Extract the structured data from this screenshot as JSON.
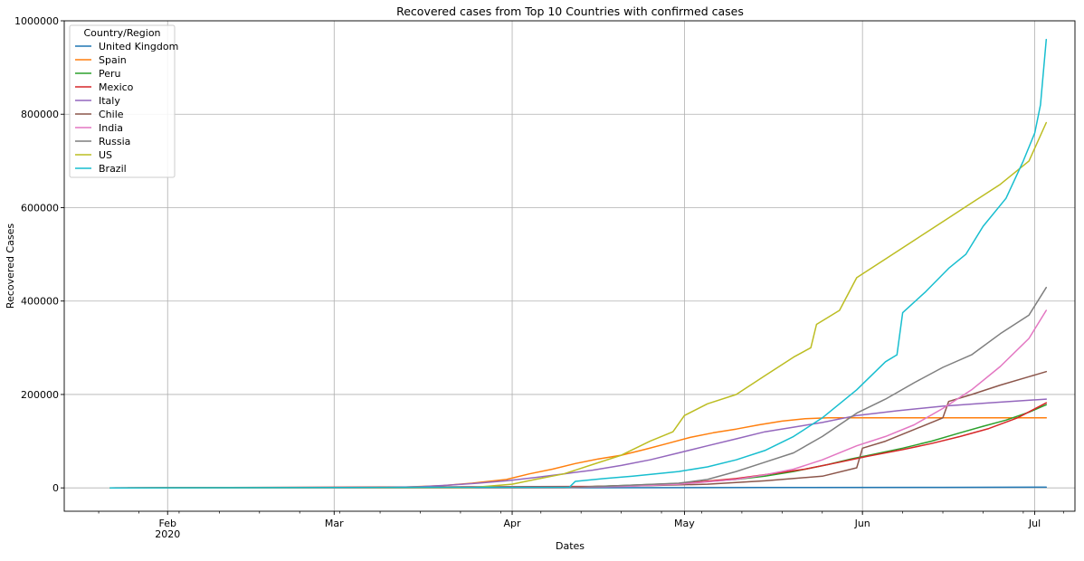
{
  "chart_data": {
    "type": "line",
    "title": "Recovered cases from Top 10 Countries with confirmed cases",
    "xlabel": "Dates",
    "ylabel": "Recovered Cases",
    "legend_title": "Country/Region",
    "legend_position": "top-left",
    "grid": true,
    "xlim": [
      "2020-01-14",
      "2020-07-08"
    ],
    "ylim": [
      -50000,
      1000000
    ],
    "y_ticks": [
      0,
      200000,
      400000,
      600000,
      800000,
      1000000
    ],
    "y_tick_labels": [
      "0",
      "200000",
      "400000",
      "600000",
      "800000",
      "1000000"
    ],
    "x_ticks": [
      {
        "date": "2020-02-01",
        "label": "Feb",
        "sublabel": "2020"
      },
      {
        "date": "2020-03-01",
        "label": "Mar",
        "sublabel": ""
      },
      {
        "date": "2020-04-01",
        "label": "Apr",
        "sublabel": ""
      },
      {
        "date": "2020-05-01",
        "label": "May",
        "sublabel": ""
      },
      {
        "date": "2020-06-01",
        "label": "Jun",
        "sublabel": ""
      },
      {
        "date": "2020-07-01",
        "label": "Jul",
        "sublabel": ""
      }
    ],
    "series": [
      {
        "name": "United Kingdom",
        "color": "#1f77b4",
        "points": [
          [
            "2020-01-22",
            0
          ],
          [
            "2020-04-15",
            300
          ],
          [
            "2020-05-15",
            800
          ],
          [
            "2020-06-15",
            1200
          ],
          [
            "2020-07-03",
            1500
          ]
        ]
      },
      {
        "name": "Spain",
        "color": "#ff7f0e",
        "points": [
          [
            "2020-01-22",
            0
          ],
          [
            "2020-03-10",
            200
          ],
          [
            "2020-03-20",
            5000
          ],
          [
            "2020-03-25",
            10000
          ],
          [
            "2020-03-31",
            18000
          ],
          [
            "2020-04-04",
            30000
          ],
          [
            "2020-04-08",
            40000
          ],
          [
            "2020-04-12",
            52000
          ],
          [
            "2020-04-16",
            62000
          ],
          [
            "2020-04-20",
            70000
          ],
          [
            "2020-04-24",
            82000
          ],
          [
            "2020-04-28",
            95000
          ],
          [
            "2020-05-02",
            108000
          ],
          [
            "2020-05-06",
            118000
          ],
          [
            "2020-05-10",
            126000
          ],
          [
            "2020-05-14",
            135000
          ],
          [
            "2020-05-18",
            143000
          ],
          [
            "2020-05-22",
            148000
          ],
          [
            "2020-05-26",
            150000
          ],
          [
            "2020-07-03",
            150000
          ]
        ]
      },
      {
        "name": "Peru",
        "color": "#2ca02c",
        "points": [
          [
            "2020-01-22",
            0
          ],
          [
            "2020-04-10",
            1000
          ],
          [
            "2020-04-20",
            5000
          ],
          [
            "2020-05-01",
            10000
          ],
          [
            "2020-05-10",
            18000
          ],
          [
            "2020-05-15",
            25000
          ],
          [
            "2020-05-20",
            35000
          ],
          [
            "2020-05-26",
            50000
          ],
          [
            "2020-05-30",
            62000
          ],
          [
            "2020-06-03",
            72000
          ],
          [
            "2020-06-08",
            85000
          ],
          [
            "2020-06-13",
            100000
          ],
          [
            "2020-06-18",
            118000
          ],
          [
            "2020-06-22",
            132000
          ],
          [
            "2020-06-26",
            145000
          ],
          [
            "2020-06-30",
            162000
          ],
          [
            "2020-07-03",
            178000
          ]
        ]
      },
      {
        "name": "Mexico",
        "color": "#d62728",
        "points": [
          [
            "2020-01-22",
            0
          ],
          [
            "2020-04-15",
            3000
          ],
          [
            "2020-04-25",
            6000
          ],
          [
            "2020-05-01",
            10000
          ],
          [
            "2020-05-10",
            20000
          ],
          [
            "2020-05-16",
            30000
          ],
          [
            "2020-05-22",
            40000
          ],
          [
            "2020-05-28",
            55000
          ],
          [
            "2020-06-02",
            68000
          ],
          [
            "2020-06-08",
            82000
          ],
          [
            "2020-06-13",
            95000
          ],
          [
            "2020-06-18",
            110000
          ],
          [
            "2020-06-23",
            127000
          ],
          [
            "2020-06-28",
            150000
          ],
          [
            "2020-07-03",
            182000
          ]
        ]
      },
      {
        "name": "Italy",
        "color": "#9467bd",
        "points": [
          [
            "2020-01-22",
            0
          ],
          [
            "2020-03-01",
            50
          ],
          [
            "2020-03-10",
            1000
          ],
          [
            "2020-03-16",
            2500
          ],
          [
            "2020-03-21",
            6000
          ],
          [
            "2020-03-26",
            10000
          ],
          [
            "2020-03-31",
            15000
          ],
          [
            "2020-04-05",
            22000
          ],
          [
            "2020-04-10",
            30000
          ],
          [
            "2020-04-15",
            38000
          ],
          [
            "2020-04-20",
            48000
          ],
          [
            "2020-04-25",
            60000
          ],
          [
            "2020-04-30",
            75000
          ],
          [
            "2020-05-05",
            90000
          ],
          [
            "2020-05-10",
            105000
          ],
          [
            "2020-05-15",
            120000
          ],
          [
            "2020-05-20",
            130000
          ],
          [
            "2020-05-25",
            140000
          ],
          [
            "2020-05-31",
            155000
          ],
          [
            "2020-06-07",
            165000
          ],
          [
            "2020-06-15",
            175000
          ],
          [
            "2020-06-23",
            182000
          ],
          [
            "2020-07-03",
            190000
          ]
        ]
      },
      {
        "name": "Chile",
        "color": "#8c564b",
        "points": [
          [
            "2020-01-22",
            0
          ],
          [
            "2020-04-10",
            1000
          ],
          [
            "2020-04-25",
            5000
          ],
          [
            "2020-05-05",
            8000
          ],
          [
            "2020-05-15",
            15000
          ],
          [
            "2020-05-25",
            25000
          ],
          [
            "2020-05-31",
            43000
          ],
          [
            "2020-06-01",
            85000
          ],
          [
            "2020-06-05",
            100000
          ],
          [
            "2020-06-10",
            125000
          ],
          [
            "2020-06-15",
            150000
          ],
          [
            "2020-06-16",
            185000
          ],
          [
            "2020-06-20",
            200000
          ],
          [
            "2020-06-25",
            220000
          ],
          [
            "2020-06-30",
            238000
          ],
          [
            "2020-07-03",
            249000
          ]
        ]
      },
      {
        "name": "India",
        "color": "#e377c2",
        "points": [
          [
            "2020-01-22",
            0
          ],
          [
            "2020-03-25",
            500
          ],
          [
            "2020-04-10",
            1000
          ],
          [
            "2020-04-20",
            3000
          ],
          [
            "2020-04-30",
            8000
          ],
          [
            "2020-05-10",
            18000
          ],
          [
            "2020-05-15",
            28000
          ],
          [
            "2020-05-20",
            40000
          ],
          [
            "2020-05-25",
            60000
          ],
          [
            "2020-05-31",
            90000
          ],
          [
            "2020-06-05",
            110000
          ],
          [
            "2020-06-10",
            135000
          ],
          [
            "2020-06-15",
            170000
          ],
          [
            "2020-06-20",
            210000
          ],
          [
            "2020-06-25",
            260000
          ],
          [
            "2020-06-30",
            320000
          ],
          [
            "2020-07-03",
            380000
          ]
        ]
      },
      {
        "name": "Russia",
        "color": "#7f7f7f",
        "points": [
          [
            "2020-01-22",
            0
          ],
          [
            "2020-04-10",
            500
          ],
          [
            "2020-04-20",
            5000
          ],
          [
            "2020-04-30",
            10000
          ],
          [
            "2020-05-05",
            18000
          ],
          [
            "2020-05-10",
            35000
          ],
          [
            "2020-05-15",
            55000
          ],
          [
            "2020-05-20",
            75000
          ],
          [
            "2020-05-25",
            110000
          ],
          [
            "2020-05-31",
            160000
          ],
          [
            "2020-06-05",
            190000
          ],
          [
            "2020-06-10",
            225000
          ],
          [
            "2020-06-15",
            258000
          ],
          [
            "2020-06-20",
            285000
          ],
          [
            "2020-06-25",
            330000
          ],
          [
            "2020-06-30",
            370000
          ],
          [
            "2020-07-03",
            429000
          ]
        ]
      },
      {
        "name": "US",
        "color": "#bcbd22",
        "points": [
          [
            "2020-01-22",
            0
          ],
          [
            "2020-03-25",
            1000
          ],
          [
            "2020-04-01",
            8000
          ],
          [
            "2020-04-05",
            18000
          ],
          [
            "2020-04-10",
            30000
          ],
          [
            "2020-04-15",
            50000
          ],
          [
            "2020-04-20",
            70000
          ],
          [
            "2020-04-25",
            100000
          ],
          [
            "2020-04-29",
            120000
          ],
          [
            "2020-05-01",
            155000
          ],
          [
            "2020-05-05",
            180000
          ],
          [
            "2020-05-10",
            200000
          ],
          [
            "2020-05-15",
            240000
          ],
          [
            "2020-05-20",
            280000
          ],
          [
            "2020-05-23",
            300000
          ],
          [
            "2020-05-24",
            350000
          ],
          [
            "2020-05-28",
            380000
          ],
          [
            "2020-05-31",
            450000
          ],
          [
            "2020-06-05",
            490000
          ],
          [
            "2020-06-10",
            530000
          ],
          [
            "2020-06-15",
            570000
          ],
          [
            "2020-06-20",
            610000
          ],
          [
            "2020-06-25",
            650000
          ],
          [
            "2020-06-30",
            700000
          ],
          [
            "2020-07-03",
            782000
          ]
        ]
      },
      {
        "name": "Brazil",
        "color": "#17becf",
        "points": [
          [
            "2020-01-22",
            0
          ],
          [
            "2020-04-11",
            2000
          ],
          [
            "2020-04-12",
            14000
          ],
          [
            "2020-04-17",
            20000
          ],
          [
            "2020-04-22",
            25000
          ],
          [
            "2020-04-30",
            35000
          ],
          [
            "2020-05-05",
            45000
          ],
          [
            "2020-05-10",
            60000
          ],
          [
            "2020-05-15",
            80000
          ],
          [
            "2020-05-20",
            110000
          ],
          [
            "2020-05-25",
            150000
          ],
          [
            "2020-05-31",
            210000
          ],
          [
            "2020-06-05",
            270000
          ],
          [
            "2020-06-07",
            285000
          ],
          [
            "2020-06-08",
            375000
          ],
          [
            "2020-06-12",
            420000
          ],
          [
            "2020-06-16",
            470000
          ],
          [
            "2020-06-19",
            500000
          ],
          [
            "2020-06-22",
            560000
          ],
          [
            "2020-06-26",
            620000
          ],
          [
            "2020-06-29",
            700000
          ],
          [
            "2020-07-01",
            760000
          ],
          [
            "2020-07-02",
            820000
          ],
          [
            "2020-07-03",
            960000
          ]
        ]
      }
    ]
  }
}
